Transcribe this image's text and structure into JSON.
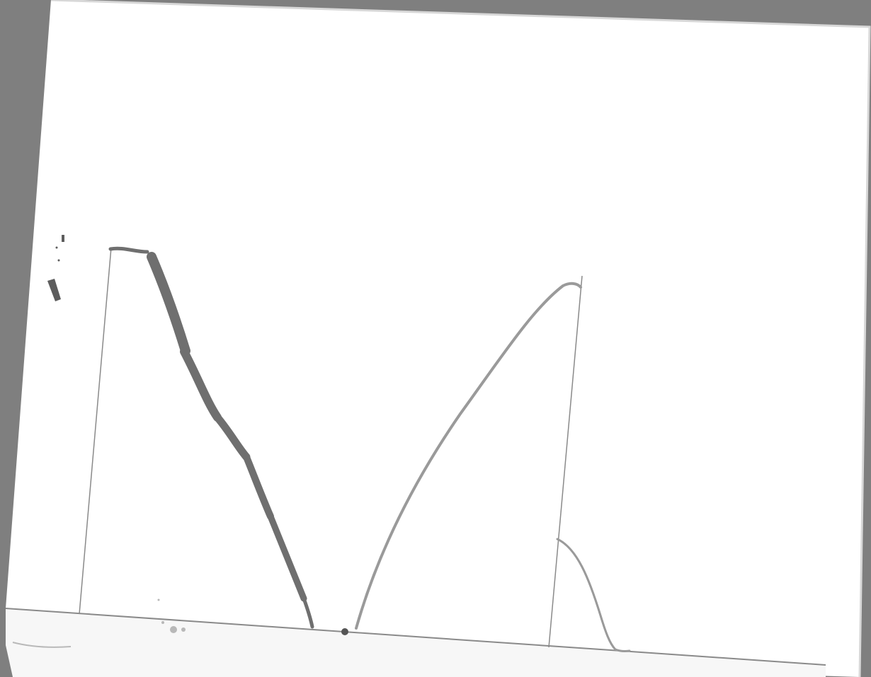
{
  "scan": {
    "background_color": "#7f7f7f",
    "paper_color": "#ffffff",
    "pencil_color": "#8a8a8a",
    "rough_stroke_color": "#6f6f6f",
    "light_stroke_color": "#9a9a9a"
  },
  "printed_text": [],
  "drawing_description_visible_text": []
}
